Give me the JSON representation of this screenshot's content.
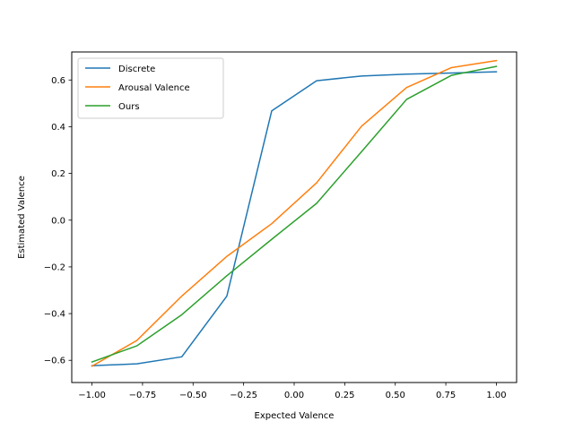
{
  "chart_data": {
    "type": "line",
    "title": "",
    "xlabel": "Expected Valence",
    "ylabel": "Estimated Valence",
    "xlim": [
      -1.1,
      1.1
    ],
    "ylim": [
      -0.695,
      0.72
    ],
    "xticks": [
      -1.0,
      -0.75,
      -0.5,
      -0.25,
      0.0,
      0.25,
      0.5,
      0.75,
      1.0
    ],
    "xtick_labels": [
      "−1.00",
      "−0.75",
      "−0.50",
      "−0.25",
      "0.00",
      "0.25",
      "0.50",
      "0.75",
      "1.00"
    ],
    "yticks": [
      -0.6,
      -0.4,
      -0.2,
      0.0,
      0.2,
      0.4,
      0.6
    ],
    "ytick_labels": [
      "−0.6",
      "−0.4",
      "−0.2",
      "0.0",
      "0.2",
      "0.4",
      "0.6"
    ],
    "grid": false,
    "legend_position": "upper-left",
    "x": [
      -1.0,
      -0.778,
      -0.556,
      -0.333,
      -0.111,
      0.111,
      0.333,
      0.556,
      0.778,
      1.0
    ],
    "series": [
      {
        "name": "Discrete",
        "color": "#1f77b4",
        "values": [
          -0.623,
          -0.615,
          -0.585,
          -0.325,
          0.468,
          0.597,
          0.617,
          0.625,
          0.63,
          0.635
        ]
      },
      {
        "name": "Arousal Valence",
        "color": "#ff7f0e",
        "values": [
          -0.625,
          -0.515,
          -0.325,
          -0.155,
          -0.015,
          0.16,
          0.402,
          0.568,
          0.653,
          0.683
        ]
      },
      {
        "name": "Ours",
        "color": "#2ca02c",
        "values": [
          -0.607,
          -0.538,
          -0.405,
          -0.238,
          -0.082,
          0.072,
          0.293,
          0.517,
          0.62,
          0.658
        ]
      }
    ]
  }
}
